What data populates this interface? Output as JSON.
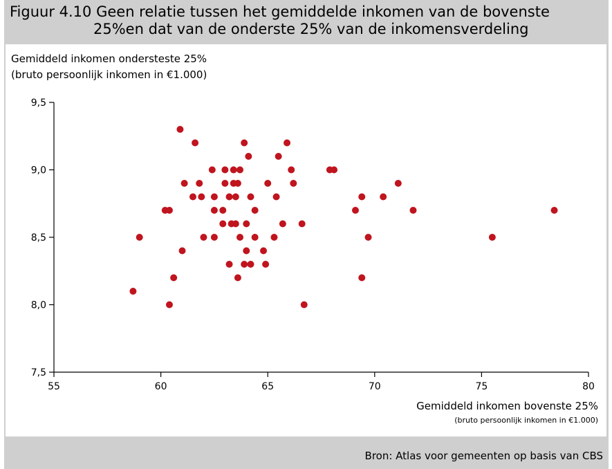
{
  "figure": {
    "title_line1": "Figuur 4.10 Geen relatie tussen het gemiddelde inkomen van de bovenste",
    "title_line2": "25%en dat van de onderste 25% van de inkomensverdeling",
    "source": "Bron: Atlas voor gemeenten op basis van CBS"
  },
  "chart_data": {
    "type": "scatter",
    "title": "",
    "ylabel": "Gemiddeld inkomen ondersteste 25%",
    "ylabel_sub": "(bruto persoonlijk inkomen in €1.000)",
    "xlabel": "Gemiddeld inkomen bovenste 25%",
    "xlabel_sub": "(bruto persoonlijk inkomen in €1.000)",
    "xlim": [
      55,
      80
    ],
    "ylim": [
      7.5,
      9.5
    ],
    "x_ticks": [
      "55",
      "60",
      "65",
      "70",
      "75",
      "80"
    ],
    "y_ticks": [
      "9,5",
      "9,0",
      "8,5",
      "8,0",
      "7,5"
    ],
    "grid": false,
    "marker_color": "#c0141e",
    "points": [
      {
        "x": 58.7,
        "y": 8.1
      },
      {
        "x": 59.0,
        "y": 8.5
      },
      {
        "x": 60.2,
        "y": 8.7
      },
      {
        "x": 60.4,
        "y": 8.7
      },
      {
        "x": 60.4,
        "y": 8.0
      },
      {
        "x": 60.6,
        "y": 8.2
      },
      {
        "x": 60.9,
        "y": 9.3
      },
      {
        "x": 61.0,
        "y": 8.4
      },
      {
        "x": 61.1,
        "y": 8.9
      },
      {
        "x": 61.5,
        "y": 8.8
      },
      {
        "x": 61.6,
        "y": 9.2
      },
      {
        "x": 61.8,
        "y": 8.9
      },
      {
        "x": 61.9,
        "y": 8.8
      },
      {
        "x": 62.0,
        "y": 8.5
      },
      {
        "x": 62.4,
        "y": 9.0
      },
      {
        "x": 62.5,
        "y": 8.8
      },
      {
        "x": 62.5,
        "y": 8.7
      },
      {
        "x": 62.5,
        "y": 8.5
      },
      {
        "x": 62.9,
        "y": 8.7
      },
      {
        "x": 62.9,
        "y": 8.6
      },
      {
        "x": 63.0,
        "y": 9.0
      },
      {
        "x": 63.0,
        "y": 8.9
      },
      {
        "x": 63.2,
        "y": 8.8
      },
      {
        "x": 63.2,
        "y": 8.3
      },
      {
        "x": 63.3,
        "y": 8.6
      },
      {
        "x": 63.4,
        "y": 9.0
      },
      {
        "x": 63.4,
        "y": 8.9
      },
      {
        "x": 63.5,
        "y": 8.8
      },
      {
        "x": 63.5,
        "y": 8.6
      },
      {
        "x": 63.6,
        "y": 8.9
      },
      {
        "x": 63.6,
        "y": 8.2
      },
      {
        "x": 63.7,
        "y": 9.0
      },
      {
        "x": 63.7,
        "y": 8.5
      },
      {
        "x": 63.9,
        "y": 9.2
      },
      {
        "x": 63.9,
        "y": 8.3
      },
      {
        "x": 64.0,
        "y": 8.6
      },
      {
        "x": 64.0,
        "y": 8.4
      },
      {
        "x": 64.1,
        "y": 9.1
      },
      {
        "x": 64.2,
        "y": 8.8
      },
      {
        "x": 64.2,
        "y": 8.3
      },
      {
        "x": 64.4,
        "y": 8.7
      },
      {
        "x": 64.4,
        "y": 8.5
      },
      {
        "x": 64.8,
        "y": 8.4
      },
      {
        "x": 64.9,
        "y": 8.3
      },
      {
        "x": 65.0,
        "y": 8.9
      },
      {
        "x": 65.3,
        "y": 8.5
      },
      {
        "x": 65.4,
        "y": 8.8
      },
      {
        "x": 65.5,
        "y": 9.1
      },
      {
        "x": 65.7,
        "y": 8.6
      },
      {
        "x": 65.9,
        "y": 9.2
      },
      {
        "x": 66.1,
        "y": 9.0
      },
      {
        "x": 66.2,
        "y": 8.9
      },
      {
        "x": 66.6,
        "y": 8.6
      },
      {
        "x": 66.7,
        "y": 8.0
      },
      {
        "x": 67.9,
        "y": 9.0
      },
      {
        "x": 68.1,
        "y": 9.0
      },
      {
        "x": 69.1,
        "y": 8.7
      },
      {
        "x": 69.4,
        "y": 8.8
      },
      {
        "x": 69.4,
        "y": 8.2
      },
      {
        "x": 69.7,
        "y": 8.5
      },
      {
        "x": 70.4,
        "y": 8.8
      },
      {
        "x": 71.1,
        "y": 8.9
      },
      {
        "x": 71.8,
        "y": 8.7
      },
      {
        "x": 75.5,
        "y": 8.5
      },
      {
        "x": 78.4,
        "y": 8.7
      }
    ]
  }
}
